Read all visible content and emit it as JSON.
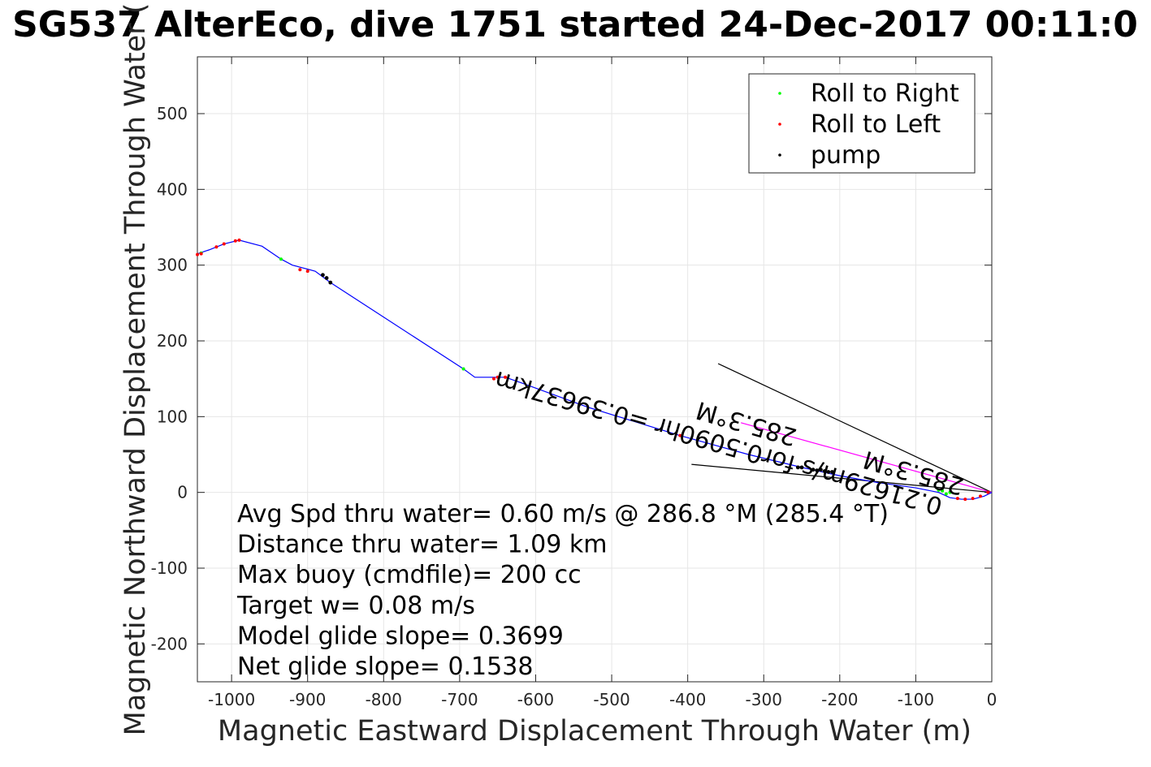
{
  "chart_data": {
    "type": "line",
    "title": "SG537 AlterEco, dive 1751 started 24-Dec-2017 00:11:0",
    "xlabel": "Magnetic Eastward Displacement Through Water (m)",
    "ylabel": "Magnetic Northward Displacement Through Water (",
    "xlim": [
      -1045,
      0
    ],
    "ylim": [
      -250,
      575
    ],
    "xticks": [
      -1000,
      -900,
      -800,
      -700,
      -600,
      -500,
      -400,
      -300,
      -200,
      -100,
      0
    ],
    "yticks": [
      -200,
      -100,
      0,
      100,
      200,
      300,
      400,
      500
    ],
    "grid": true,
    "legend_position": "top-right",
    "legend": [
      {
        "name": "Roll to Right",
        "color": "#00ff00"
      },
      {
        "name": "Roll to Left",
        "color": "#ff0000"
      },
      {
        "name": "pump",
        "color": "#000000"
      }
    ],
    "track": {
      "name": "track",
      "color": "#0000ff",
      "x": [
        0,
        -10,
        -25,
        -40,
        -55,
        -70,
        -100,
        -150,
        -200,
        -250,
        -320,
        -410,
        -530,
        -620,
        -640,
        -660,
        -680,
        -695,
        -870,
        -890,
        -920,
        -935,
        -960,
        -990,
        -1010,
        -1030,
        -1045
      ],
      "y": [
        0,
        -5,
        -9,
        -9,
        -7,
        0,
        6,
        13,
        22,
        33,
        50,
        75,
        112,
        145,
        152,
        152,
        152,
        163,
        277,
        292,
        300,
        308,
        325,
        333,
        328,
        320,
        315
      ]
    },
    "roll_right": {
      "x": [
        -55,
        -60,
        -65,
        -70,
        -695,
        -935,
        -1040
      ],
      "y": [
        0,
        -2,
        2,
        3,
        163,
        308,
        316
      ]
    },
    "roll_left": {
      "x": [
        -5,
        -15,
        -25,
        -35,
        -45,
        -655,
        -650,
        -640,
        -410,
        -900,
        -910,
        -990,
        -995,
        -1010,
        -1020,
        -1040,
        -1045
      ],
      "y": [
        0,
        -5,
        -8,
        -9,
        -8,
        150,
        152,
        152,
        75,
        292,
        294,
        333,
        332,
        328,
        324,
        315,
        314
      ]
    },
    "pump": {
      "x": [
        -255,
        -250,
        -235,
        -230,
        -225,
        -220,
        -215,
        -210,
        -880,
        -875,
        -870
      ],
      "y": [
        33,
        33,
        30,
        29,
        30,
        28,
        27,
        27,
        287,
        283,
        277
      ]
    },
    "vectors": [
      {
        "from_x": 0,
        "from_y": 0,
        "to_x": -360,
        "to_y": 170,
        "color": "#000000"
      },
      {
        "from_x": 0,
        "from_y": 0,
        "to_x": -395,
        "to_y": 37,
        "color": "#000000"
      },
      {
        "from_x": 0,
        "from_y": 0,
        "to_x": -330,
        "to_y": 92,
        "color": "#ff00ff"
      }
    ],
    "rotated_annotations": [
      {
        "text": "0.21629m/s for0.5090hr =0.39637km",
        "anchor_x": -650,
        "anchor_y": 160,
        "angle": 196
      },
      {
        "text": "285.3°M",
        "anchor_x": -385,
        "anchor_y": 120,
        "angle": 196
      },
      {
        "text": "285.3°M",
        "anchor_x": -165,
        "anchor_y": 55,
        "angle": 196
      }
    ],
    "annotations": [
      "Avg Spd thru water=  0.60 m/s @ 286.8 °M (285.4 °T)",
      "Distance thru water=  1.09 km",
      "Max buoy (cmdfile)= 200 cc",
      "Target w= 0.08 m/s",
      "Model glide slope= 0.3699",
      "Net glide slope= 0.1538"
    ]
  }
}
